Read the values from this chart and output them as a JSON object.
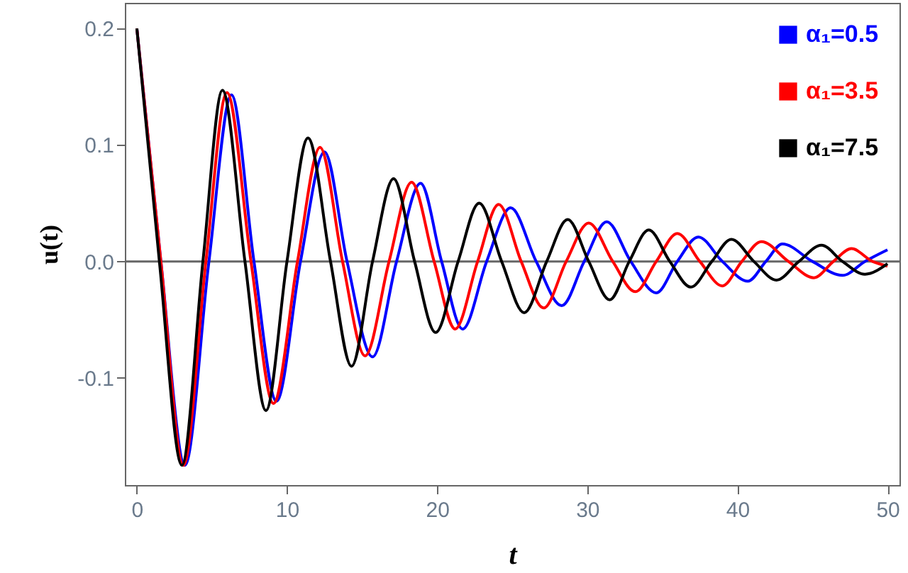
{
  "chart_data": {
    "type": "line",
    "xlabel": "t",
    "ylabel": "u(t)",
    "xlim": [
      -0.8,
      50.8
    ],
    "ylim": [
      -0.192,
      0.222
    ],
    "xticks": [
      0,
      10,
      20,
      30,
      40,
      50
    ],
    "yticks": [
      {
        "value": -0.1,
        "label": "-0.1"
      },
      {
        "value": 0,
        "label": "0.0"
      },
      {
        "value": 0.1,
        "label": "0.1"
      },
      {
        "value": 0.2,
        "label": "0.2"
      }
    ],
    "legend": "top right",
    "grid": false,
    "ref_lines": [
      {
        "axis": "y",
        "value": 0,
        "color": "#666666"
      }
    ],
    "series": [
      {
        "name": "α₁=0.5",
        "color": "#0000ff",
        "x": [
          0,
          1.6,
          3.2,
          4.8,
          6.3,
          7.8,
          9.3,
          10.9,
          12.5,
          14.0,
          15.7,
          17.3,
          18.9,
          20.3,
          21.7,
          23.3,
          24.9,
          26.6,
          28.3,
          29.8,
          31.3,
          32.9,
          34.6,
          36.0,
          37.4,
          39.0,
          40.7,
          41.9,
          43.0,
          45.0,
          47.0,
          48.5,
          50
        ],
        "values": [
          0.2,
          0,
          -0.175,
          0,
          0.143,
          0,
          -0.12,
          0,
          0.094,
          0,
          -0.082,
          0,
          0.067,
          0,
          -0.058,
          0,
          0.046,
          0,
          -0.038,
          0,
          0.034,
          0,
          -0.027,
          0,
          0.021,
          0,
          -0.017,
          0,
          0.015,
          0,
          -0.012,
          0,
          0.01
        ]
      },
      {
        "name": "α₁=3.5",
        "color": "#ff0000",
        "x": [
          0,
          1.6,
          3.1,
          4.6,
          6.0,
          7.6,
          9.1,
          10.7,
          12.2,
          13.7,
          15.2,
          16.8,
          18.3,
          19.8,
          21.2,
          22.7,
          24.1,
          25.6,
          27.1,
          28.6,
          30.1,
          31.7,
          33.2,
          34.6,
          36.0,
          37.5,
          39.0,
          40.3,
          41.6,
          43.4,
          45.1,
          46.4,
          47.6,
          49.0,
          50
        ],
        "values": [
          0.2,
          0,
          -0.175,
          0,
          0.145,
          0,
          -0.122,
          0,
          0.098,
          0,
          -0.081,
          0,
          0.068,
          0,
          -0.058,
          0,
          0.049,
          0,
          -0.04,
          0,
          0.033,
          0,
          -0.026,
          0,
          0.024,
          0,
          -0.021,
          0,
          0.017,
          0,
          -0.014,
          0,
          0.011,
          0,
          -0.004
        ]
      },
      {
        "name": "α₁=7.5",
        "color": "#000000",
        "x": [
          0,
          1.5,
          3.0,
          4.4,
          5.7,
          7.2,
          8.6,
          10.0,
          11.4,
          12.9,
          14.3,
          15.7,
          17.1,
          18.5,
          19.9,
          21.4,
          22.8,
          24.3,
          25.8,
          27.3,
          28.7,
          30.1,
          31.5,
          32.8,
          34.1,
          35.5,
          36.9,
          38.3,
          39.6,
          41.1,
          42.6,
          44.1,
          45.6,
          47.0,
          48.5,
          50
        ],
        "values": [
          0.2,
          0,
          -0.175,
          0,
          0.147,
          0,
          -0.128,
          0,
          0.106,
          0,
          -0.09,
          0,
          0.071,
          0,
          -0.061,
          0,
          0.05,
          0,
          -0.044,
          0,
          0.036,
          0,
          -0.033,
          0,
          0.027,
          0,
          -0.022,
          0,
          0.019,
          0,
          -0.016,
          0,
          0.014,
          0,
          -0.011,
          -0.002
        ]
      }
    ]
  }
}
